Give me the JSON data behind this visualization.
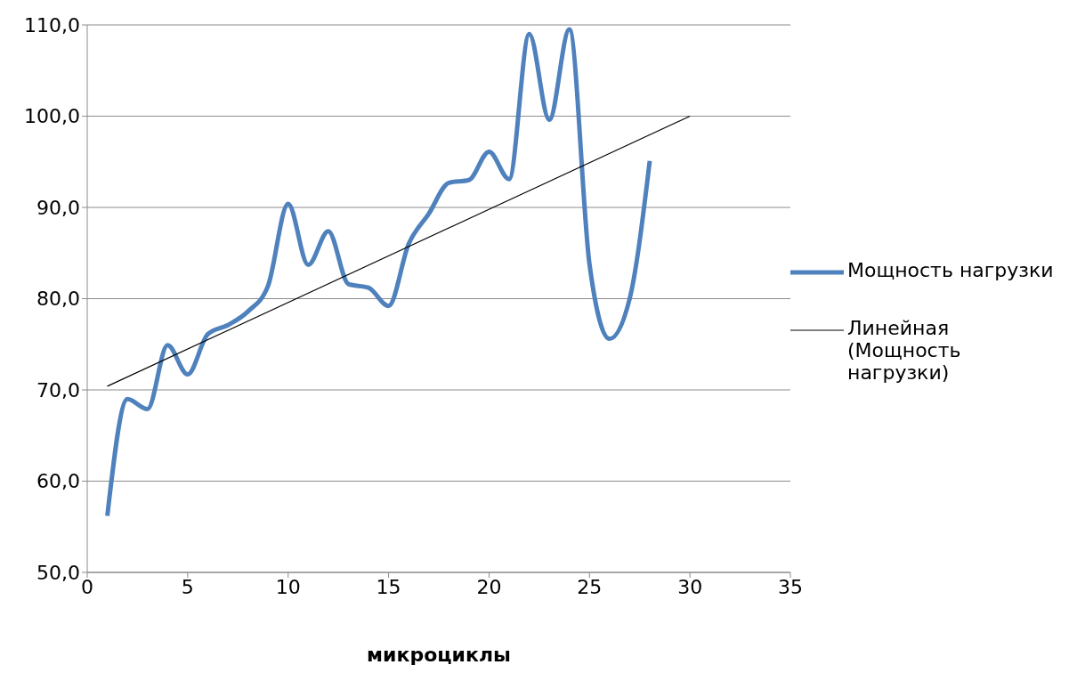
{
  "chart_data": {
    "type": "line",
    "xlabel": "микроциклы",
    "x": [
      1,
      2,
      3,
      4,
      5,
      6,
      7,
      8,
      9,
      10,
      11,
      12,
      13,
      14,
      15,
      16,
      17,
      18,
      19,
      20,
      21,
      22,
      23,
      24,
      25,
      26,
      27,
      28
    ],
    "series": [
      {
        "name": "Мощность нагрузки",
        "color": "#4f81bd",
        "values": [
          56.2,
          69.0,
          67.9,
          74.9,
          71.7,
          76.1,
          77.1,
          78.6,
          81.4,
          90.4,
          83.7,
          87.4,
          81.6,
          81.2,
          79.2,
          86.0,
          89.3,
          92.7,
          93.0,
          96.1,
          93.1,
          109.0,
          99.6,
          109.5,
          83.8,
          75.6,
          80.0,
          95.1
        ]
      },
      {
        "name": "Линейная (Мощность нагрузки)",
        "color": "#000000",
        "type": "line",
        "x": [
          1,
          30
        ],
        "values": [
          70.4,
          100.0
        ]
      }
    ],
    "xlim": [
      0,
      35
    ],
    "xticks": [
      0,
      5,
      10,
      15,
      20,
      25,
      30,
      35
    ],
    "ylim": [
      50,
      110
    ],
    "yticks": [
      {
        "value": 50,
        "label": "50,0"
      },
      {
        "value": 60,
        "label": "60,0"
      },
      {
        "value": 70,
        "label": "70,0"
      },
      {
        "value": 80,
        "label": "80,0"
      },
      {
        "value": 90,
        "label": "90,0"
      },
      {
        "value": 100,
        "label": "100,0"
      },
      {
        "value": 110,
        "label": "110,0"
      }
    ],
    "grid": "y",
    "legend": "right",
    "marker": "none",
    "line_style": "solid"
  }
}
